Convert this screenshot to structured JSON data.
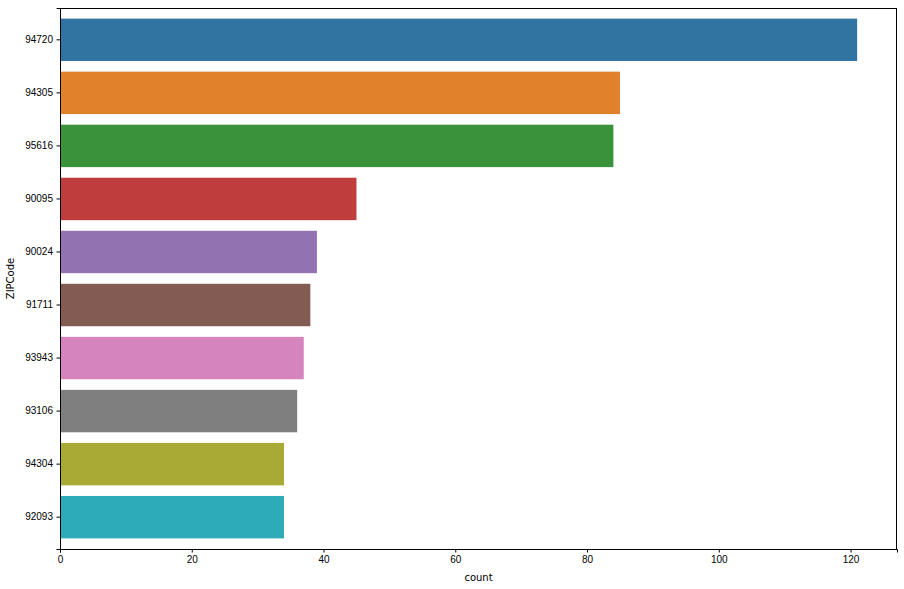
{
  "chart_data": {
    "type": "bar",
    "orientation": "horizontal",
    "xlabel": "count",
    "ylabel": "ZIPCode",
    "categories": [
      "94720",
      "94305",
      "95616",
      "90095",
      "90024",
      "91711",
      "93943",
      "93106",
      "94304",
      "92093"
    ],
    "values": [
      121,
      85,
      84,
      45,
      39,
      38,
      37,
      36,
      34,
      34
    ],
    "colors": [
      "#3274a1",
      "#e1812c",
      "#3a923a",
      "#c03d3e",
      "#9372b2",
      "#845b53",
      "#d684bd",
      "#7f7f7f",
      "#a9aa35",
      "#2eabb8"
    ],
    "xlim": [
      0,
      127.05
    ],
    "xticks": [
      0,
      20,
      40,
      60,
      80,
      100,
      120
    ],
    "grid": false
  }
}
